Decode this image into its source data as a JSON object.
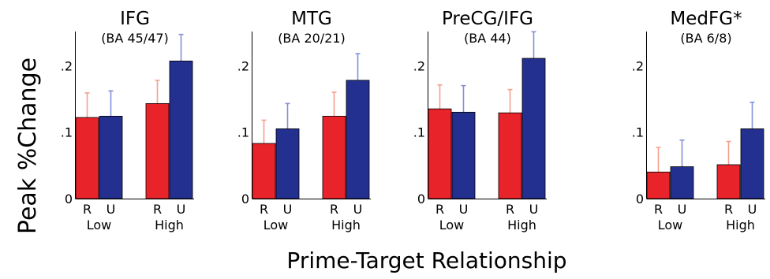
{
  "ylabel": "Peak %Change",
  "xlabel": "Prime-Target Relationship",
  "colors": {
    "R": "#e8232a",
    "U": "#24308f",
    "R_err": "#f4a08e",
    "U_err": "#8290d8"
  },
  "chart_data": [
    {
      "type": "bar",
      "title": "IFG",
      "subtitle": "(BA 45/47)",
      "groups": [
        "Low",
        "High"
      ],
      "conditions": [
        "R",
        "U"
      ],
      "series": [
        {
          "name": "R",
          "values": [
            0.122,
            0.143
          ],
          "errors": [
            0.037,
            0.035
          ]
        },
        {
          "name": "U",
          "values": [
            0.124,
            0.207
          ],
          "errors": [
            0.038,
            0.04
          ]
        }
      ],
      "yticks": [
        ".2",
        ".1",
        "0"
      ],
      "ylim": [
        0,
        0.23
      ]
    },
    {
      "type": "bar",
      "title": "MTG",
      "subtitle": "(BA 20/21)",
      "groups": [
        "Low",
        "High"
      ],
      "conditions": [
        "R",
        "U"
      ],
      "series": [
        {
          "name": "R",
          "values": [
            0.083,
            0.124
          ],
          "errors": [
            0.035,
            0.036
          ]
        },
        {
          "name": "U",
          "values": [
            0.105,
            0.178
          ],
          "errors": [
            0.038,
            0.04
          ]
        }
      ],
      "yticks": [
        ".2",
        ".1",
        "0"
      ],
      "ylim": [
        0,
        0.23
      ]
    },
    {
      "type": "bar",
      "title": "PreCG/IFG",
      "subtitle": "(BA 44)",
      "groups": [
        "Low",
        "High"
      ],
      "conditions": [
        "R",
        "U"
      ],
      "series": [
        {
          "name": "R",
          "values": [
            0.135,
            0.129
          ],
          "errors": [
            0.036,
            0.035
          ]
        },
        {
          "name": "U",
          "values": [
            0.13,
            0.211
          ],
          "errors": [
            0.04,
            0.04
          ]
        }
      ],
      "yticks": [
        ".2",
        ".1",
        "0"
      ],
      "ylim": [
        0,
        0.23
      ]
    },
    {
      "type": "bar",
      "title": "MedFG*",
      "subtitle": "(BA 6/8)",
      "groups": [
        "Low",
        "High"
      ],
      "conditions": [
        "R",
        "U"
      ],
      "series": [
        {
          "name": "R",
          "values": [
            0.04,
            0.051
          ],
          "errors": [
            0.037,
            0.035
          ]
        },
        {
          "name": "U",
          "values": [
            0.048,
            0.105
          ],
          "errors": [
            0.04,
            0.04
          ]
        }
      ],
      "yticks": [
        ".2",
        ".1",
        "0"
      ],
      "ylim": [
        0,
        0.23
      ]
    }
  ]
}
